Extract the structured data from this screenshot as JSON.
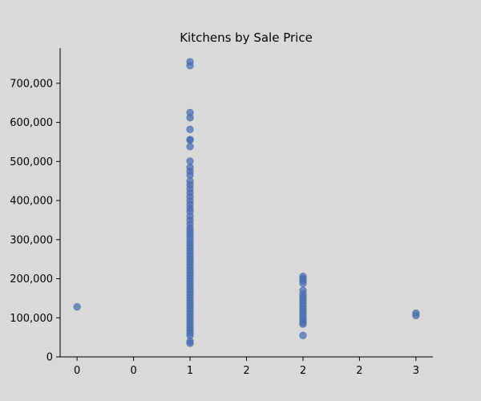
{
  "chart_data": {
    "type": "scatter",
    "title": "Kitchens by Sale Price",
    "xlabel": "",
    "ylabel": "",
    "xlim": [
      -0.15,
      3.15
    ],
    "ylim": [
      0,
      790000
    ],
    "x_ticks": [
      0,
      0.5,
      1,
      1.5,
      2,
      2.5,
      3
    ],
    "x_tick_labels": [
      "0",
      "0",
      "1",
      "2",
      "2",
      "2",
      "3"
    ],
    "y_ticks": [
      0,
      100000,
      200000,
      300000,
      400000,
      500000,
      600000,
      700000
    ],
    "y_tick_labels": [
      "0",
      "100,000",
      "200,000",
      "300,000",
      "400,000",
      "500,000",
      "600,000",
      "700,000"
    ],
    "grid": false,
    "point_color": "#4c6fb1",
    "series": [
      {
        "points": [
          [
            0,
            128000
          ],
          [
            1,
            755000
          ],
          [
            1,
            745000
          ],
          [
            1,
            625000
          ],
          [
            1,
            612000
          ],
          [
            1,
            582000
          ],
          [
            1,
            556000
          ],
          [
            1,
            555000
          ],
          [
            1,
            538000
          ],
          [
            1,
            501000
          ],
          [
            1,
            485000
          ],
          [
            1,
            475000
          ],
          [
            1,
            465000
          ],
          [
            1,
            450000
          ],
          [
            1,
            440000
          ],
          [
            1,
            430000
          ],
          [
            1,
            420000
          ],
          [
            1,
            410000
          ],
          [
            1,
            400000
          ],
          [
            1,
            390000
          ],
          [
            1,
            380000
          ],
          [
            1,
            372000
          ],
          [
            1,
            360000
          ],
          [
            1,
            350000
          ],
          [
            1,
            340000
          ],
          [
            1,
            330000
          ],
          [
            1,
            322000
          ],
          [
            1,
            315000
          ],
          [
            1,
            308000
          ],
          [
            1,
            300000
          ],
          [
            1,
            292000
          ],
          [
            1,
            285000
          ],
          [
            1,
            278000
          ],
          [
            1,
            271000
          ],
          [
            1,
            264000
          ],
          [
            1,
            257000
          ],
          [
            1,
            250000
          ],
          [
            1,
            243000
          ],
          [
            1,
            236000
          ],
          [
            1,
            229000
          ],
          [
            1,
            222000
          ],
          [
            1,
            215000
          ],
          [
            1,
            208000
          ],
          [
            1,
            201000
          ],
          [
            1,
            194000
          ],
          [
            1,
            187000
          ],
          [
            1,
            180000
          ],
          [
            1,
            173000
          ],
          [
            1,
            166000
          ],
          [
            1,
            159000
          ],
          [
            1,
            152000
          ],
          [
            1,
            145000
          ],
          [
            1,
            138000
          ],
          [
            1,
            131000
          ],
          [
            1,
            124000
          ],
          [
            1,
            117000
          ],
          [
            1,
            110000
          ],
          [
            1,
            103000
          ],
          [
            1,
            96000
          ],
          [
            1,
            89000
          ],
          [
            1,
            82000
          ],
          [
            1,
            75000
          ],
          [
            1,
            68000
          ],
          [
            1,
            61000
          ],
          [
            1,
            55000
          ],
          [
            1,
            40000
          ],
          [
            1,
            35000
          ],
          [
            2,
            206000
          ],
          [
            2,
            200000
          ],
          [
            2,
            195000
          ],
          [
            2,
            188000
          ],
          [
            2,
            170000
          ],
          [
            2,
            160000
          ],
          [
            2,
            152000
          ],
          [
            2,
            145000
          ],
          [
            2,
            138000
          ],
          [
            2,
            130000
          ],
          [
            2,
            122000
          ],
          [
            2,
            115000
          ],
          [
            2,
            108000
          ],
          [
            2,
            100000
          ],
          [
            2,
            94000
          ],
          [
            2,
            88000
          ],
          [
            2,
            84000
          ],
          [
            2,
            55000
          ],
          [
            3,
            112000
          ],
          [
            3,
            106000
          ]
        ]
      }
    ]
  }
}
